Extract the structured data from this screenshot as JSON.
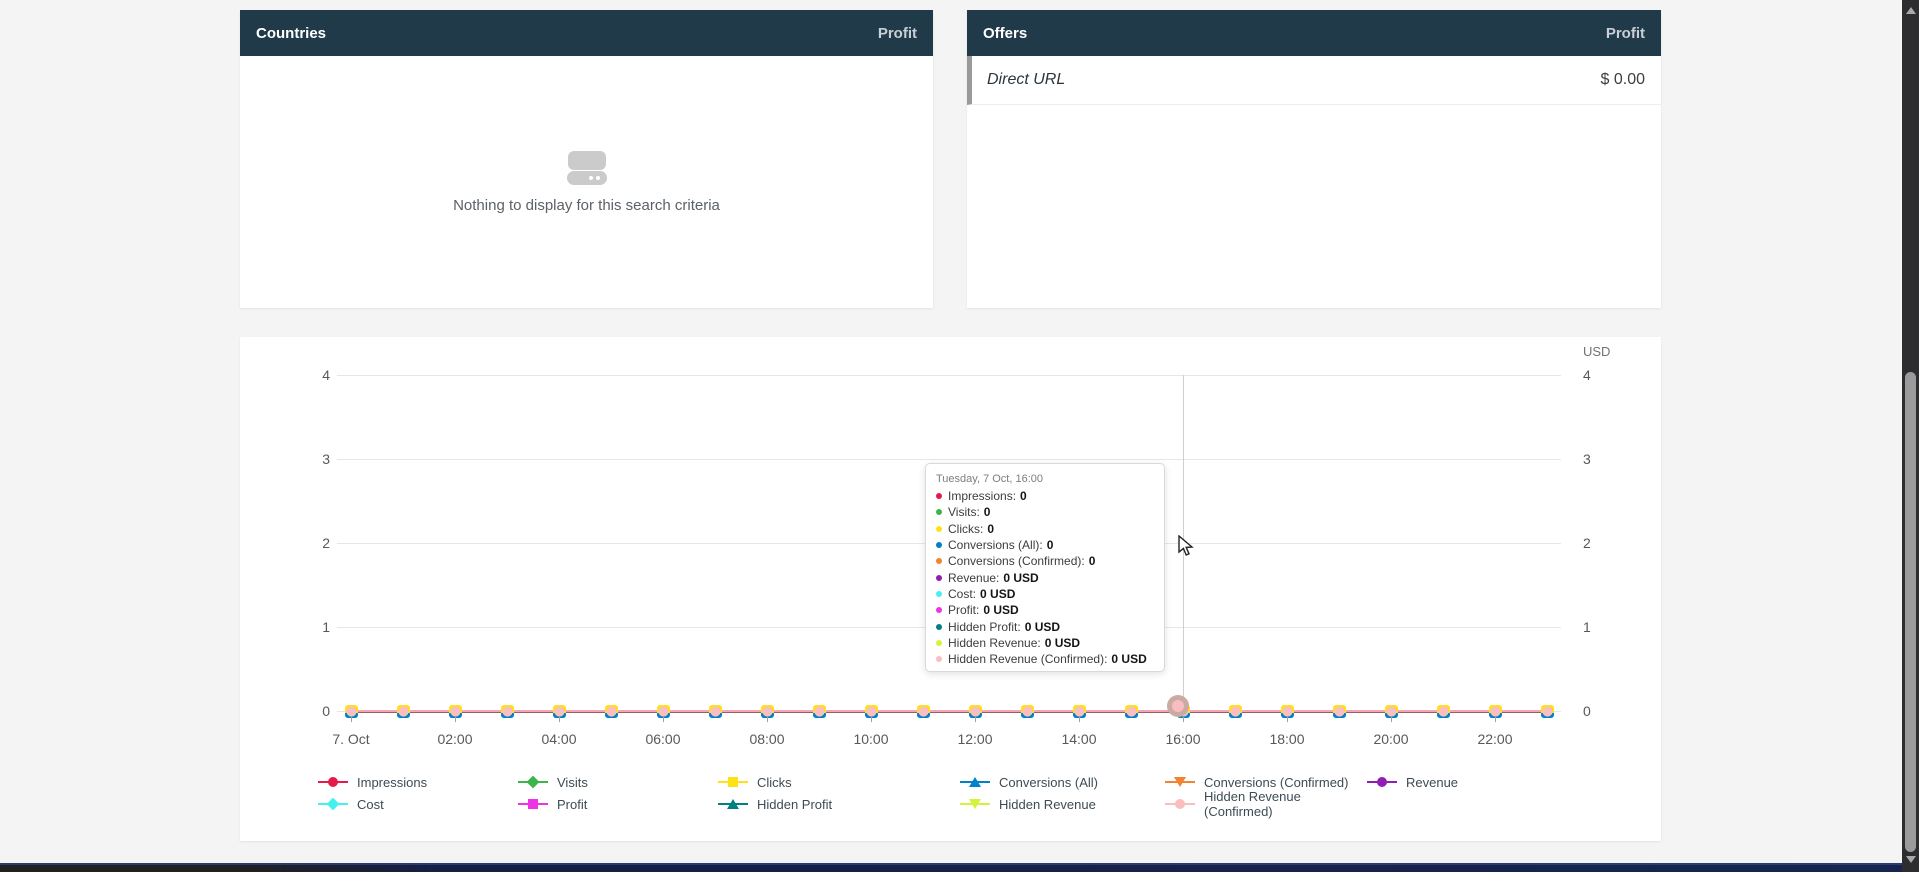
{
  "panels": {
    "countries": {
      "title": "Countries",
      "metric_label": "Profit",
      "empty_message": "Nothing to display for this search criteria"
    },
    "offers": {
      "title": "Offers",
      "metric_label": "Profit",
      "rows": [
        {
          "name": "Direct URL",
          "value": "$ 0.00"
        }
      ]
    }
  },
  "chart_data": {
    "type": "line",
    "title": "",
    "right_axis_unit": "USD",
    "y_ticks": [
      4,
      3,
      2,
      1,
      0
    ],
    "y_range": [
      0,
      4
    ],
    "grid": true,
    "legend_position": "bottom",
    "x": [
      "00:00",
      "01:00",
      "02:00",
      "03:00",
      "04:00",
      "05:00",
      "06:00",
      "07:00",
      "08:00",
      "09:00",
      "10:00",
      "11:00",
      "12:00",
      "13:00",
      "14:00",
      "15:00",
      "16:00",
      "17:00",
      "18:00",
      "19:00",
      "20:00",
      "21:00",
      "22:00",
      "23:00"
    ],
    "x_tick_labels": [
      "7. Oct",
      "02:00",
      "04:00",
      "06:00",
      "08:00",
      "10:00",
      "12:00",
      "14:00",
      "16:00",
      "18:00",
      "20:00",
      "22:00"
    ],
    "series": [
      {
        "name": "Impressions",
        "color": "#e6194b",
        "marker": "circle",
        "values": [
          0,
          0,
          0,
          0,
          0,
          0,
          0,
          0,
          0,
          0,
          0,
          0,
          0,
          0,
          0,
          0,
          0,
          0,
          0,
          0,
          0,
          0,
          0,
          0
        ]
      },
      {
        "name": "Visits",
        "color": "#3cb44b",
        "marker": "diamond",
        "values": [
          0,
          0,
          0,
          0,
          0,
          0,
          0,
          0,
          0,
          0,
          0,
          0,
          0,
          0,
          0,
          0,
          0,
          0,
          0,
          0,
          0,
          0,
          0,
          0
        ]
      },
      {
        "name": "Clicks",
        "color": "#ffe119",
        "marker": "square",
        "values": [
          0,
          0,
          0,
          0,
          0,
          0,
          0,
          0,
          0,
          0,
          0,
          0,
          0,
          0,
          0,
          0,
          0,
          0,
          0,
          0,
          0,
          0,
          0,
          0
        ]
      },
      {
        "name": "Conversions (All)",
        "color": "#0082c8",
        "marker": "triangle-up",
        "values": [
          0,
          0,
          0,
          0,
          0,
          0,
          0,
          0,
          0,
          0,
          0,
          0,
          0,
          0,
          0,
          0,
          0,
          0,
          0,
          0,
          0,
          0,
          0,
          0
        ]
      },
      {
        "name": "Conversions (Confirmed)",
        "color": "#f58231",
        "marker": "triangle-down",
        "values": [
          0,
          0,
          0,
          0,
          0,
          0,
          0,
          0,
          0,
          0,
          0,
          0,
          0,
          0,
          0,
          0,
          0,
          0,
          0,
          0,
          0,
          0,
          0,
          0
        ]
      },
      {
        "name": "Revenue",
        "color": "#911eb4",
        "marker": "circle",
        "values": [
          0,
          0,
          0,
          0,
          0,
          0,
          0,
          0,
          0,
          0,
          0,
          0,
          0,
          0,
          0,
          0,
          0,
          0,
          0,
          0,
          0,
          0,
          0,
          0
        ]
      },
      {
        "name": "Cost",
        "color": "#46f0f0",
        "marker": "diamond",
        "values": [
          0,
          0,
          0,
          0,
          0,
          0,
          0,
          0,
          0,
          0,
          0,
          0,
          0,
          0,
          0,
          0,
          0,
          0,
          0,
          0,
          0,
          0,
          0,
          0
        ]
      },
      {
        "name": "Profit",
        "color": "#f032e6",
        "marker": "square",
        "values": [
          0,
          0,
          0,
          0,
          0,
          0,
          0,
          0,
          0,
          0,
          0,
          0,
          0,
          0,
          0,
          0,
          0,
          0,
          0,
          0,
          0,
          0,
          0,
          0
        ]
      },
      {
        "name": "Hidden Profit",
        "color": "#008080",
        "marker": "triangle-up",
        "values": [
          0,
          0,
          0,
          0,
          0,
          0,
          0,
          0,
          0,
          0,
          0,
          0,
          0,
          0,
          0,
          0,
          0,
          0,
          0,
          0,
          0,
          0,
          0,
          0
        ]
      },
      {
        "name": "Hidden Revenue",
        "color": "#d2f53c",
        "marker": "triangle-down",
        "values": [
          0,
          0,
          0,
          0,
          0,
          0,
          0,
          0,
          0,
          0,
          0,
          0,
          0,
          0,
          0,
          0,
          0,
          0,
          0,
          0,
          0,
          0,
          0,
          0
        ]
      },
      {
        "name": "Hidden Revenue (Confirmed)",
        "color": "#fabebe",
        "marker": "circle",
        "values": [
          0,
          0,
          0,
          0,
          0,
          0,
          0,
          0,
          0,
          0,
          0,
          0,
          0,
          0,
          0,
          0,
          0,
          0,
          0,
          0,
          0,
          0,
          0,
          0
        ]
      }
    ],
    "hover_point": {
      "x_index": 16,
      "x_label": "16:00",
      "date_label": "Tuesday, 7 Oct, 16:00"
    }
  },
  "tooltip": {
    "title": "Tuesday, 7 Oct, 16:00",
    "items": [
      {
        "label": "Impressions",
        "value": "0",
        "color": "#e6194b"
      },
      {
        "label": "Visits",
        "value": "0",
        "color": "#3cb44b"
      },
      {
        "label": "Clicks",
        "value": "0",
        "color": "#ffe119"
      },
      {
        "label": "Conversions (All)",
        "value": "0",
        "color": "#0082c8"
      },
      {
        "label": "Conversions (Confirmed)",
        "value": "0",
        "color": "#f58231"
      },
      {
        "label": "Revenue",
        "value": "0 USD",
        "color": "#911eb4"
      },
      {
        "label": "Cost",
        "value": "0 USD",
        "color": "#46f0f0"
      },
      {
        "label": "Profit",
        "value": "0 USD",
        "color": "#f032e6"
      },
      {
        "label": "Hidden Profit",
        "value": "0 USD",
        "color": "#008080"
      },
      {
        "label": "Hidden Revenue",
        "value": "0 USD",
        "color": "#d2f53c"
      },
      {
        "label": "Hidden Revenue (Confirmed)",
        "value": "0 USD",
        "color": "#fabebe"
      }
    ]
  },
  "colors": {
    "panel_header_bg": "#203a49",
    "page_bg": "#f4f4f5",
    "series_line": "#f2a7b2"
  }
}
